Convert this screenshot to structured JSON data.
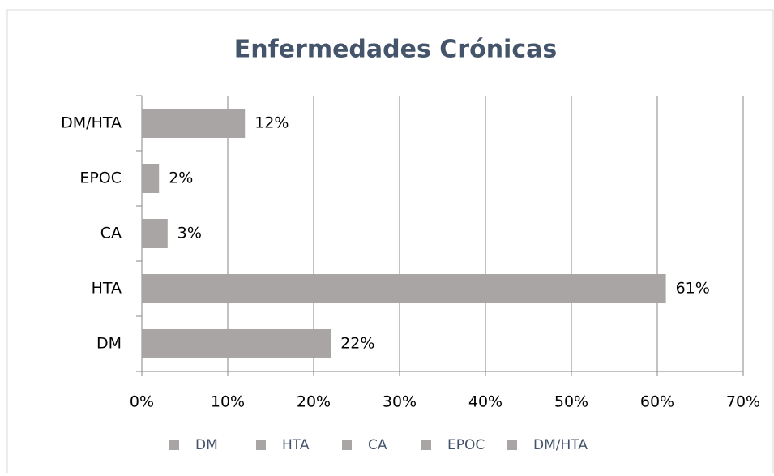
{
  "chart_data": {
    "type": "bar",
    "orientation": "horizontal",
    "title": "Enfermedades Crónicas",
    "categories": [
      "DM",
      "HTA",
      "CA",
      "EPOC",
      "DM/HTA"
    ],
    "values": [
      22,
      61,
      3,
      2,
      12
    ],
    "value_labels": [
      "22%",
      "61%",
      "3%",
      "2%",
      "12%"
    ],
    "color": "#aaa5a5",
    "xlim": [
      0,
      70
    ],
    "xticks": [
      {
        "value": 0,
        "label": "0%"
      },
      {
        "value": 10,
        "label": "10%"
      },
      {
        "value": 20,
        "label": "20%"
      },
      {
        "value": 30,
        "label": "30%"
      },
      {
        "value": 40,
        "label": "40%"
      },
      {
        "value": 50,
        "label": "50%"
      },
      {
        "value": 60,
        "label": "60%"
      },
      {
        "value": 70,
        "label": "70%"
      }
    ],
    "grid": true,
    "legend": "bottom"
  }
}
